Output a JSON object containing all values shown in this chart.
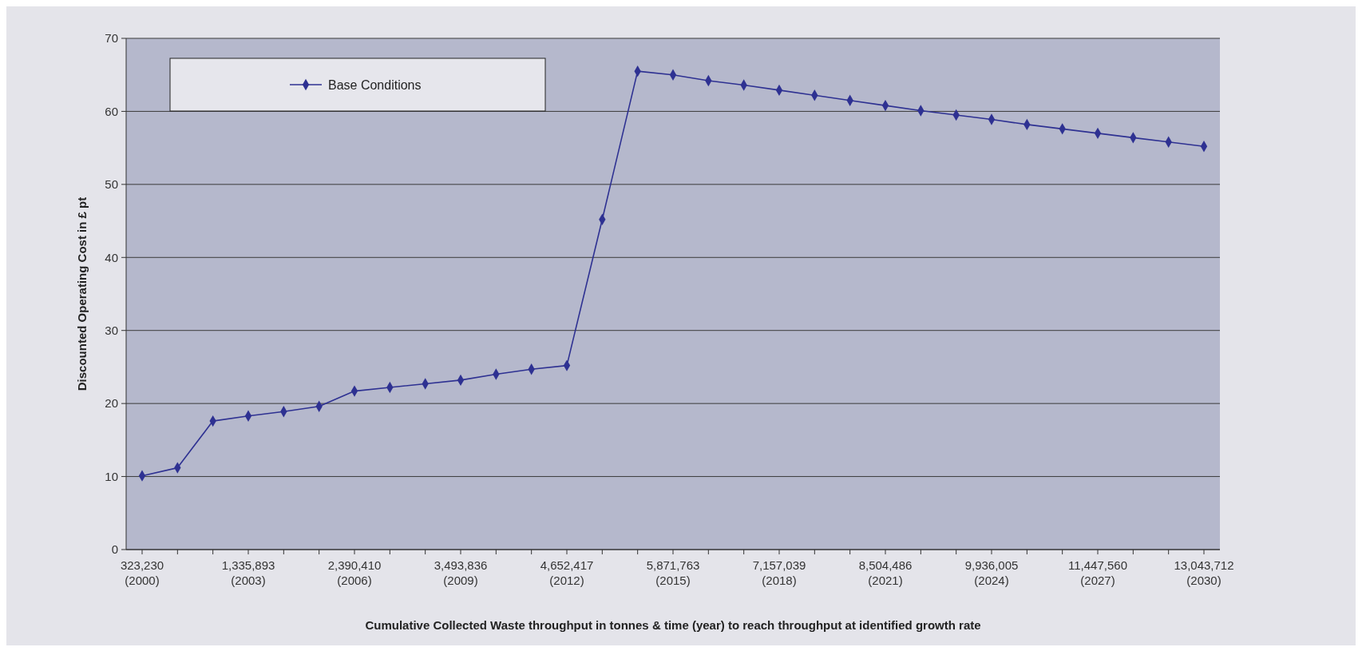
{
  "chart_data": {
    "type": "line",
    "xlabel": "Cumulative Collected Waste throughput in tonnes & time (year) to reach throughput at identified growth rate",
    "ylabel": "Discounted Operating Cost in £ pt",
    "categories": [
      "323,230\n(2000)",
      null,
      null,
      "1,335,893\n(2003)",
      null,
      null,
      "2,390,410\n(2006)",
      null,
      null,
      "3,493,836\n(2009)",
      null,
      null,
      "4,652,417\n(2012)",
      null,
      null,
      "5,871,763\n(2015)",
      null,
      null,
      "7,157,039\n(2018)",
      null,
      null,
      "8,504,486\n(2021)",
      null,
      null,
      "9,936,005\n(2024)",
      null,
      null,
      "11,447,560\n(2027)",
      null,
      null,
      "13,043,712\n(2030)"
    ],
    "series": [
      {
        "name": "Base Conditions",
        "color": "#2e3192",
        "values": [
          10.1,
          11.2,
          17.6,
          18.3,
          18.9,
          19.6,
          21.7,
          22.2,
          22.7,
          23.2,
          24.0,
          24.7,
          25.2,
          45.2,
          65.5,
          65.0,
          64.2,
          63.6,
          62.9,
          62.2,
          61.5,
          60.8,
          60.1,
          59.5,
          58.9,
          58.2,
          57.6,
          57.0,
          56.4,
          55.8,
          55.2
        ]
      }
    ],
    "ylim": [
      0,
      70
    ],
    "yticks": [
      0,
      10,
      20,
      30,
      40,
      50,
      60,
      70
    ],
    "grid": "y",
    "legend": "top left",
    "marker": "diamond",
    "line_style": "solid"
  }
}
